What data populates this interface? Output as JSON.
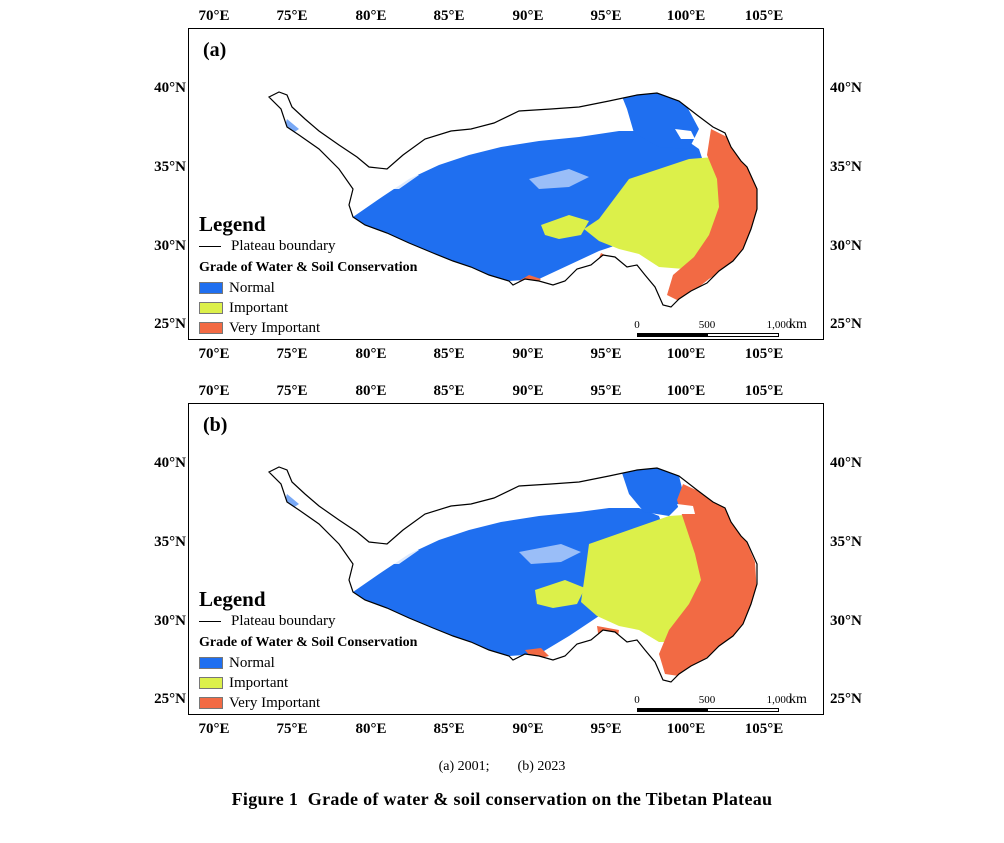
{
  "figure": {
    "caption": "Figure 1  Grade of water & soil conservation on the Tibetan Plateau",
    "subcaption": "(a) 2001;        (b) 2023",
    "longitude_labels": [
      "70°E",
      "75°E",
      "80°E",
      "85°E",
      "90°E",
      "95°E",
      "100°E",
      "105°E"
    ],
    "latitude_labels": [
      "40°N",
      "35°N",
      "30°N",
      "25°N"
    ],
    "legend": {
      "title": "Legend",
      "boundary_label": "Plateau boundary",
      "grade_title": "Grade of Water & Soil Conservation",
      "classes": [
        {
          "label": "Normal",
          "color": "#1f6ff0"
        },
        {
          "label": "Important",
          "color": "#dcf04a"
        },
        {
          "label": "Very Important",
          "color": "#f26a44"
        }
      ]
    },
    "scalebar": {
      "ticks": [
        "0",
        "500",
        "1,000"
      ],
      "unit": "km"
    },
    "panels": [
      {
        "label": "(a)",
        "year": "2001"
      },
      {
        "label": "(b)",
        "year": "2023"
      }
    ]
  }
}
